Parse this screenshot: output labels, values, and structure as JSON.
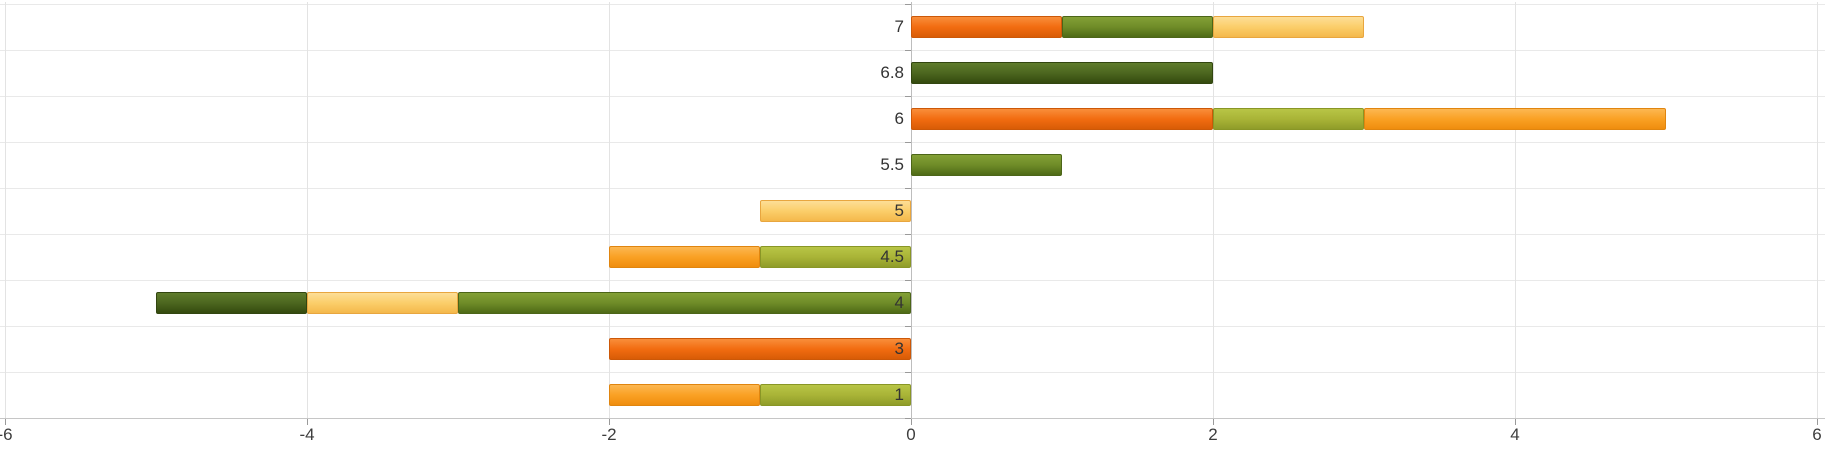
{
  "chart_data": {
    "type": "bar",
    "orientation": "horizontal",
    "stacked": true,
    "title": "",
    "xlabel": "",
    "ylabel": "",
    "xlim": [
      -6,
      6
    ],
    "grid": true,
    "x_ticks": [
      {
        "label": "-6",
        "value": -6
      },
      {
        "label": "-4",
        "value": -4
      },
      {
        "label": "-2",
        "value": -2
      },
      {
        "label": "0",
        "value": 0
      },
      {
        "label": "2",
        "value": 2
      },
      {
        "label": "4",
        "value": 4
      },
      {
        "label": "6",
        "value": 6
      }
    ],
    "categories": [
      "7",
      "6.8",
      "6",
      "5.5",
      "5",
      "4.5",
      "4",
      "3",
      "1"
    ],
    "rows": [
      {
        "category": "7",
        "segments": [
          {
            "series": "orange-red",
            "value": 1
          },
          {
            "series": "olive-green",
            "value": 1
          },
          {
            "series": "light-yellow",
            "value": 1
          }
        ]
      },
      {
        "category": "6.8",
        "segments": [
          {
            "series": "dark-green",
            "value": 2
          }
        ]
      },
      {
        "category": "6",
        "segments": [
          {
            "series": "orange-red",
            "value": 2
          },
          {
            "series": "yellow-green",
            "value": 1
          },
          {
            "series": "light-orange",
            "value": 2
          }
        ]
      },
      {
        "category": "5.5",
        "segments": [
          {
            "series": "olive-green",
            "value": 1
          }
        ]
      },
      {
        "category": "5",
        "segments": [
          {
            "series": "light-yellow",
            "value": -1
          }
        ]
      },
      {
        "category": "4.5",
        "segments": [
          {
            "series": "light-orange",
            "value": -1
          },
          {
            "series": "yellow-green",
            "value": -1
          }
        ]
      },
      {
        "category": "4",
        "segments": [
          {
            "series": "dark-green",
            "value": -1
          },
          {
            "series": "light-yellow",
            "value": -1
          },
          {
            "series": "olive-green",
            "value": -3
          }
        ]
      },
      {
        "category": "3",
        "segments": [
          {
            "series": "orange-red",
            "value": -2
          }
        ]
      },
      {
        "category": "1",
        "segments": [
          {
            "series": "light-orange",
            "value": -1
          },
          {
            "series": "yellow-green",
            "value": -1
          }
        ]
      }
    ],
    "series_colors": {
      "orange-red": {
        "light": "#f98e3a",
        "base": "#f26c11",
        "dark": "#d85c06",
        "border": "#cc5808"
      },
      "olive-green": {
        "light": "#83a036",
        "base": "#6f8c28",
        "dark": "#4e6a16",
        "border": "#4c6518"
      },
      "light-yellow": {
        "light": "#fdde97",
        "base": "#fbce6a",
        "dark": "#f4b84b",
        "border": "#e8a63f"
      },
      "dark-green": {
        "light": "#5f7c2c",
        "base": "#4c661f",
        "dark": "#344a0e",
        "border": "#324610"
      },
      "yellow-green": {
        "light": "#b8c546",
        "base": "#a9b437",
        "dark": "#8f9c29",
        "border": "#899626"
      },
      "light-orange": {
        "light": "#fcb752",
        "base": "#faa124",
        "dark": "#ef8d0e",
        "border": "#e0850f"
      }
    },
    "style_colors": {
      "gridline_vertical": "#e3e3e3",
      "gridline_horizontal": "#e9e9e9",
      "zero_axis_line": "#bdbdbd",
      "axis_baseline": "#c6c6c6",
      "tick_mark": "#9a9a9a",
      "bottom_rule": "#1a1a1a",
      "label_text": "#3d3d3d"
    }
  }
}
